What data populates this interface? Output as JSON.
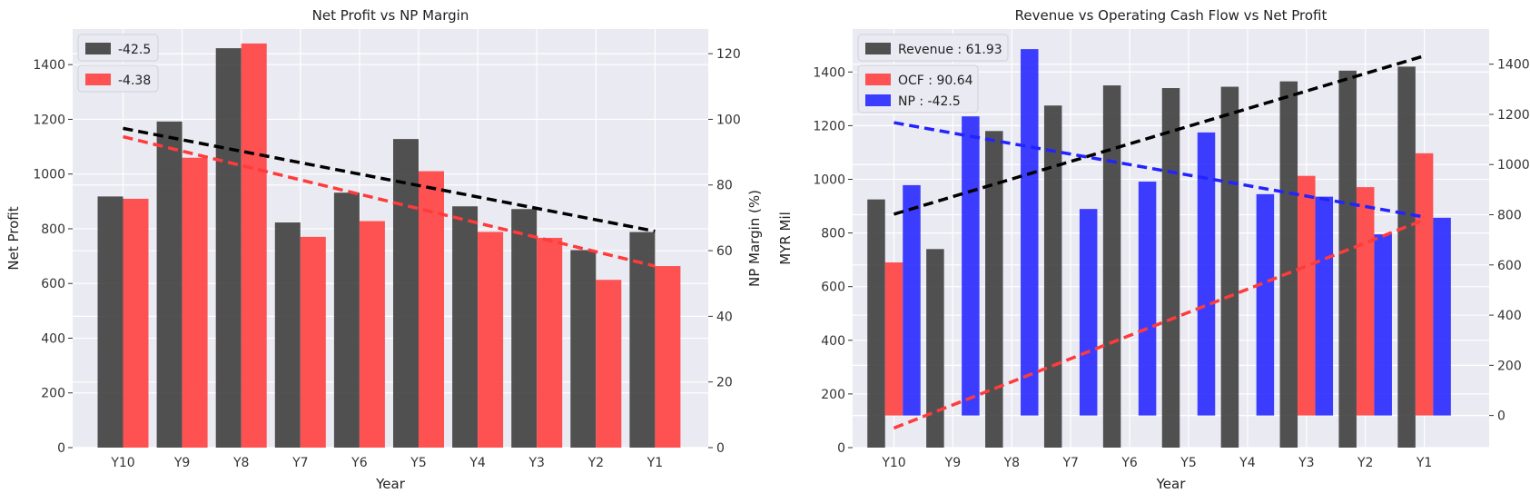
{
  "chart_data": [
    {
      "type": "bar",
      "title": "Net Profit vs NP Margin",
      "xlabel": "Year",
      "ylabel": "Net Profit",
      "y2label": "NP Margin (%)",
      "categories": [
        "Y10",
        "Y9",
        "Y8",
        "Y7",
        "Y6",
        "Y5",
        "Y4",
        "Y3",
        "Y2",
        "Y1"
      ],
      "ylim": [
        0,
        1530
      ],
      "y2lim": [
        0,
        127.5
      ],
      "yticks": [
        0,
        200,
        400,
        600,
        800,
        1000,
        1200,
        1400
      ],
      "y2ticks": [
        0,
        20,
        40,
        60,
        80,
        100,
        120
      ],
      "grid": true,
      "legend_position": "top-left",
      "series": [
        {
          "name": "-42.5",
          "axis": "left",
          "color": "#3a3a3a",
          "values": [
            918,
            1192,
            1460,
            823,
            932,
            1128,
            882,
            872,
            722,
            788
          ],
          "trend": [
            1167,
            791
          ]
        },
        {
          "name": "-4.38",
          "axis": "right",
          "color": "#ff3b3b",
          "values": [
            75.8,
            88.3,
            123.1,
            64.2,
            69.0,
            84.2,
            65.7,
            63.9,
            51.1,
            55.3
          ],
          "trend": [
            94.7,
            55.3
          ]
        }
      ]
    },
    {
      "type": "bar",
      "title": "Revenue vs Operating Cash Flow vs Net Profit",
      "xlabel": "Year",
      "ylabel": "MYR Mil",
      "categories": [
        "Y10",
        "Y9",
        "Y8",
        "Y7",
        "Y6",
        "Y5",
        "Y4",
        "Y3",
        "Y2",
        "Y1"
      ],
      "ylim": [
        0,
        1560
      ],
      "y2lim": [
        -128,
        1540
      ],
      "yticks": [
        0,
        200,
        400,
        600,
        800,
        1000,
        1200,
        1400
      ],
      "y2ticks": [
        0,
        200,
        400,
        600,
        800,
        1000,
        1200,
        1400
      ],
      "grid": true,
      "legend_position": "top-left",
      "series": [
        {
          "name": "Revenue : 61.93",
          "axis": "left",
          "color": "#3a3a3a",
          "values": [
            925,
            740,
            1180,
            1275,
            1350,
            1340,
            1345,
            1365,
            1405,
            1420
          ],
          "trend": [
            870,
            1460
          ]
        },
        {
          "name": "OCF : 90.64",
          "axis": "right",
          "color": "#ff3b3b",
          "values": [
            610,
            null,
            null,
            null,
            null,
            null,
            null,
            955,
            910,
            1045
          ],
          "trend": [
            -50,
            780
          ]
        },
        {
          "name": "NP : -42.5",
          "axis": "right",
          "color": "#2323ff",
          "values": [
            918,
            1192,
            1460,
            823,
            932,
            1128,
            882,
            872,
            722,
            788
          ],
          "trend": [
            1167,
            791
          ]
        }
      ]
    }
  ]
}
